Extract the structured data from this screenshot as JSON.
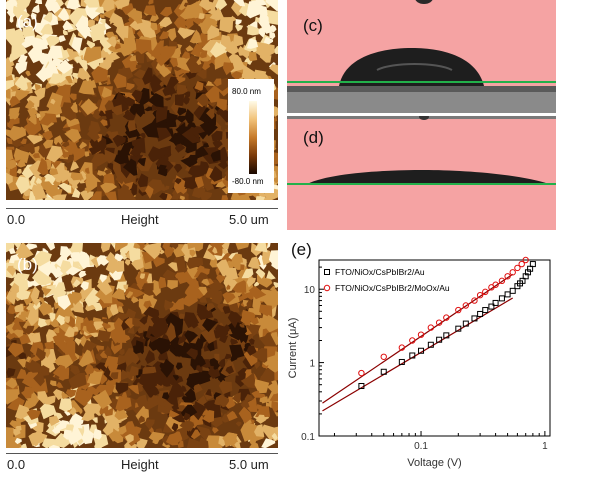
{
  "panels": {
    "a": {
      "label": "(a)"
    },
    "b": {
      "label": "(b)"
    },
    "c": {
      "label": "(c)"
    },
    "d": {
      "label": "(d)"
    },
    "e": {
      "label": "(e)"
    }
  },
  "afm_scale": {
    "start": "0.0",
    "middle": "Height",
    "end": "5.0 um"
  },
  "colorbar": {
    "max": "80.0 nm",
    "min": "-80.0 nm"
  },
  "colors": {
    "contact_bg": "#f5a3a3",
    "baseline": "#22b04a",
    "series1": "#000000",
    "series2": "#e01010",
    "fit": "#8b0000"
  },
  "chart_data": {
    "type": "scatter",
    "xlabel": "Voltage (V)",
    "ylabel": "Current (μA)",
    "xscale": "log",
    "yscale": "log",
    "xlim": [
      0.015,
      1.1
    ],
    "ylim": [
      0.1,
      25
    ],
    "xticks": [
      "0.1",
      "1"
    ],
    "yticks": [
      "0.1",
      "1",
      "10"
    ],
    "legend_position": "top-left",
    "series": [
      {
        "name": "FTO/NiOx/CsPbIBr2/Au",
        "marker": "square",
        "color": "#000000",
        "x": [
          0.033,
          0.05,
          0.07,
          0.085,
          0.1,
          0.12,
          0.14,
          0.16,
          0.2,
          0.23,
          0.27,
          0.3,
          0.33,
          0.37,
          0.4,
          0.45,
          0.5,
          0.55,
          0.6,
          0.63,
          0.66,
          0.7,
          0.73,
          0.76,
          0.8
        ],
        "y": [
          0.48,
          0.75,
          1.02,
          1.25,
          1.45,
          1.75,
          2.05,
          2.35,
          2.9,
          3.4,
          4.0,
          4.6,
          5.2,
          5.8,
          6.5,
          7.5,
          8.5,
          9.5,
          11.0,
          12.0,
          13.0,
          15.0,
          17.0,
          19.0,
          22.0
        ]
      },
      {
        "name": "FTO/NiOx/CsPbIBr2/MoOx/Au",
        "marker": "circle",
        "color": "#e01010",
        "x": [
          0.033,
          0.05,
          0.07,
          0.085,
          0.1,
          0.12,
          0.14,
          0.16,
          0.2,
          0.23,
          0.27,
          0.3,
          0.33,
          0.37,
          0.4,
          0.45,
          0.5,
          0.55,
          0.6,
          0.65,
          0.7
        ],
        "y": [
          0.72,
          1.2,
          1.6,
          2.0,
          2.4,
          3.0,
          3.5,
          4.1,
          5.2,
          6.0,
          7.0,
          8.3,
          9.2,
          10.6,
          11.5,
          13.0,
          15.0,
          17.0,
          19.5,
          22.0,
          25.0
        ]
      }
    ],
    "fits": [
      {
        "series": "FTO/NiOx/CsPbIBr2/Au",
        "x": [
          0.016,
          0.55
        ],
        "y": [
          0.22,
          7.6
        ]
      },
      {
        "series": "FTO/NiOx/CsPbIBr2/MoOx/Au",
        "x": [
          0.016,
          0.55
        ],
        "y": [
          0.28,
          16.0
        ]
      }
    ]
  }
}
